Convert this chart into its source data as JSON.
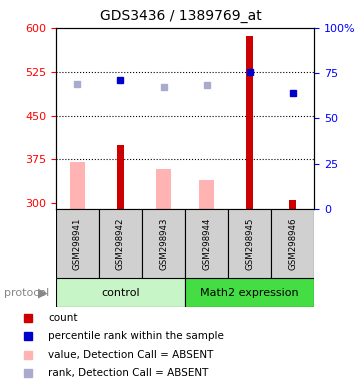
{
  "title": "GDS3436 / 1389769_at",
  "samples": [
    "GSM298941",
    "GSM298942",
    "GSM298943",
    "GSM298944",
    "GSM298945",
    "GSM298946"
  ],
  "ylim_left": [
    290,
    600
  ],
  "ylim_right": [
    0,
    100
  ],
  "yticks_left": [
    300,
    375,
    450,
    525,
    600
  ],
  "yticks_right": [
    0,
    25,
    50,
    75,
    100
  ],
  "hlines": [
    375,
    450,
    525
  ],
  "red_bars": [
    null,
    400,
    null,
    null,
    585,
    305
  ],
  "pink_bars": [
    370,
    null,
    358,
    340,
    null,
    null
  ],
  "blue_squares": [
    null,
    510,
    null,
    null,
    524,
    488
  ],
  "lavender_squares": [
    504,
    null,
    498,
    502,
    null,
    null
  ],
  "red_color": "#cc0000",
  "pink_color": "#ffb3b3",
  "blue_color": "#0000cc",
  "lavender_color": "#aaaacc",
  "ctrl_green": "#c8f5c8",
  "math_green": "#44dd44",
  "sample_gray": "#d0d0d0",
  "title_fontsize": 10,
  "legend_fontsize": 7.5,
  "axis_fontsize": 8
}
